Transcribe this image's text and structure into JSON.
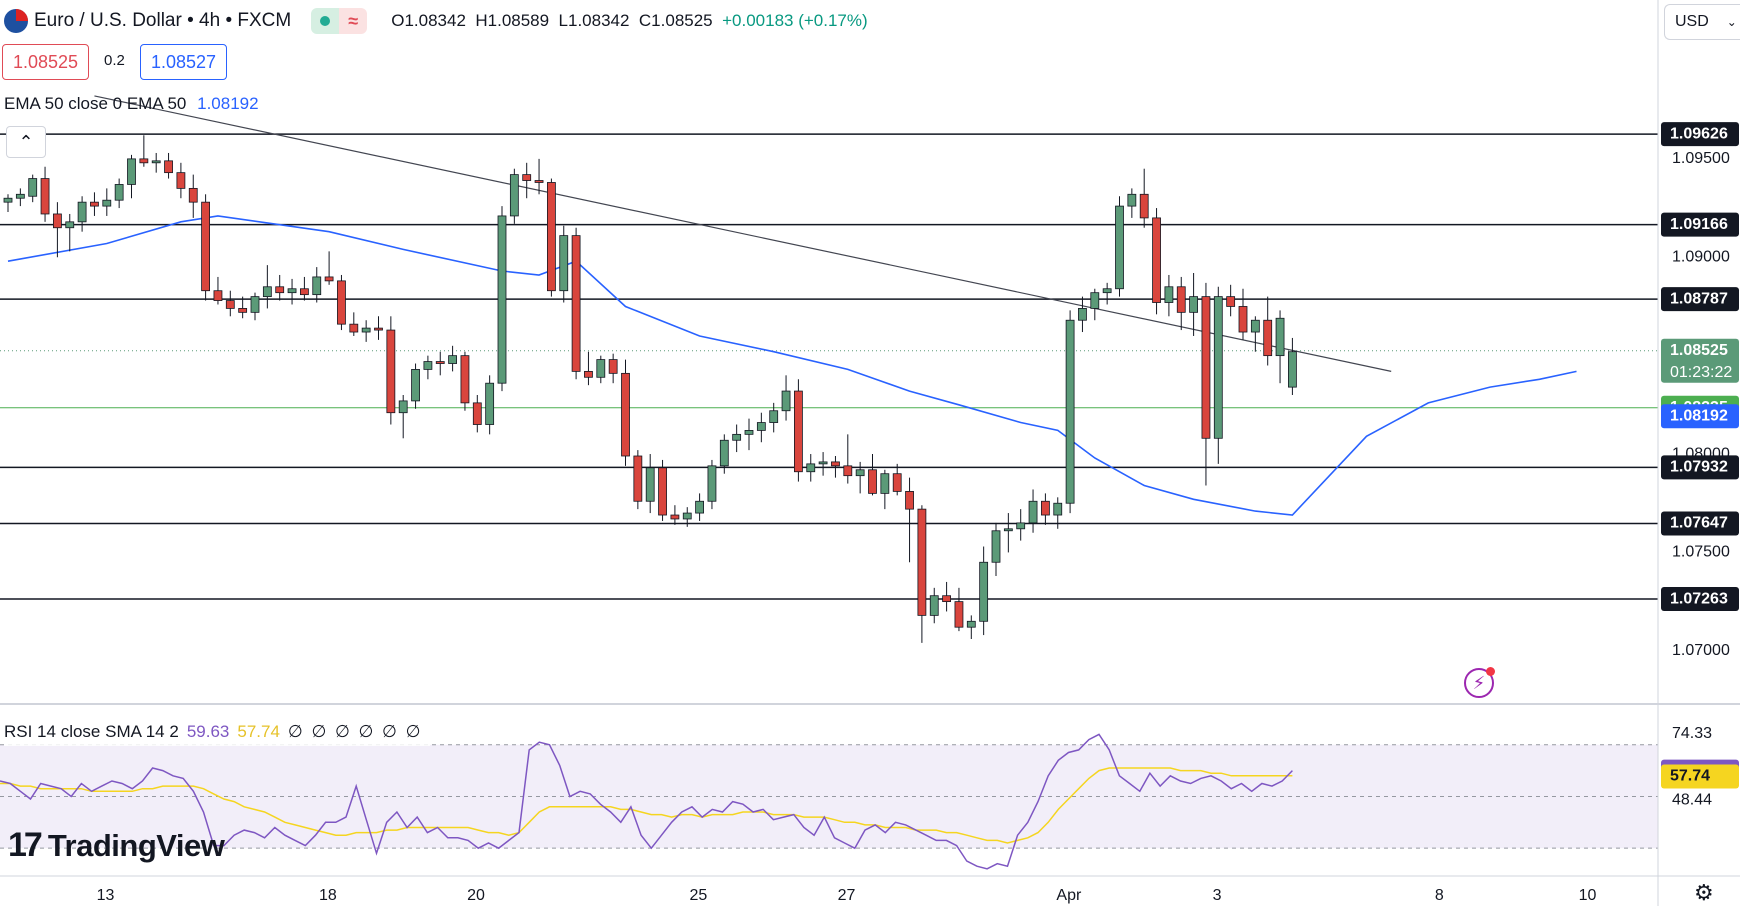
{
  "header": {
    "title": "Euro / U.S. Dollar • 4h • FXCM",
    "wave_symbol": "≈",
    "ohlc": {
      "o": "O1.08342",
      "h": "H1.08589",
      "l": "L1.08342",
      "c": "C1.08525",
      "change": "+0.00183 (+0.17%)"
    }
  },
  "trade": {
    "sell": "1.08525",
    "spread": "0.2",
    "buy": "1.08527"
  },
  "ema_legend": {
    "label": "EMA 50 close 0 EMA 50",
    "value": "1.08192"
  },
  "collapse_glyph": "⌃",
  "currency": {
    "label": "USD",
    "chevron": "⌄"
  },
  "rsi_legend": {
    "label": "RSI 14 close SMA 14 2",
    "rsi": "59.63",
    "sma": "57.74",
    "zeros": "∅ ∅ ∅ ∅ ∅ ∅"
  },
  "logo": {
    "mark": "17",
    "text": "TradingView"
  },
  "flash_glyph": "⚡",
  "gear_glyph": "⚙",
  "colors": {
    "up": "#5b9a78",
    "down": "#d9453d",
    "ema": "#2962ff",
    "rsi": "#7e57c2",
    "rsi_sma": "#f5d520",
    "green_line": "#4caf50",
    "trend": "#434651"
  },
  "chart_data": {
    "type": "candlestick",
    "price_axis": {
      "ylim": [
        1.0675,
        1.0985
      ],
      "ticks": [
        "1.09500",
        "1.09000",
        "1.08000",
        "1.07500",
        "1.07000"
      ]
    },
    "time_axis": {
      "ticks": [
        {
          "label": "13",
          "i": 7
        },
        {
          "label": "18",
          "i": 22
        },
        {
          "label": "20",
          "i": 32
        },
        {
          "label": "25",
          "i": 47
        },
        {
          "label": "27",
          "i": 57
        },
        {
          "label": "Apr",
          "i": 72
        },
        {
          "label": "3",
          "i": 82
        },
        {
          "label": "8",
          "i": 97
        },
        {
          "label": "10",
          "i": 107
        }
      ]
    },
    "horizontal_levels": [
      {
        "value": 1.09626,
        "label": "1.09626"
      },
      {
        "value": 1.09166,
        "label": "1.09166"
      },
      {
        "value": 1.08787,
        "label": "1.08787"
      },
      {
        "value": 1.07932,
        "label": "1.07932"
      },
      {
        "value": 1.07647,
        "label": "1.07647"
      },
      {
        "value": 1.07263,
        "label": "1.07263"
      }
    ],
    "support_line": {
      "value": 1.08235,
      "label": "1.08235"
    },
    "current_price": {
      "value": 1.08525,
      "label": "1.08525",
      "countdown": "01:23:22"
    },
    "ema_current": {
      "value": 1.08192,
      "label": "1.08192"
    },
    "trendline": [
      {
        "i": 7,
        "price": 1.0982
      },
      {
        "i": 112,
        "price": 1.0842
      }
    ],
    "candles": [
      [
        1.0928,
        1.0932,
        1.0923,
        1.093
      ],
      [
        1.093,
        1.0935,
        1.0926,
        1.0932
      ],
      [
        1.0931,
        1.0942,
        1.0928,
        1.094
      ],
      [
        1.094,
        1.0946,
        1.0918,
        1.0922
      ],
      [
        1.0922,
        1.0928,
        1.09,
        1.0915
      ],
      [
        1.0915,
        1.0922,
        1.0903,
        1.0918
      ],
      [
        1.0918,
        1.0931,
        1.0913,
        1.0928
      ],
      [
        1.0928,
        1.0933,
        1.0921,
        1.0926
      ],
      [
        1.0926,
        1.0935,
        1.0921,
        1.0929
      ],
      [
        1.0929,
        1.094,
        1.0925,
        1.0937
      ],
      [
        1.0937,
        1.0952,
        1.093,
        1.095
      ],
      [
        1.095,
        1.0962,
        1.0946,
        1.0948
      ],
      [
        1.0948,
        1.0953,
        1.0943,
        1.0949
      ],
      [
        1.0949,
        1.0953,
        1.094,
        1.0943
      ],
      [
        1.0943,
        1.0948,
        1.093,
        1.0935
      ],
      [
        1.0935,
        1.0942,
        1.092,
        1.0928
      ],
      [
        1.0928,
        1.0932,
        1.0878,
        1.0883
      ],
      [
        1.0883,
        1.089,
        1.0876,
        1.0878
      ],
      [
        1.0878,
        1.0883,
        1.087,
        1.0874
      ],
      [
        1.0874,
        1.088,
        1.0869,
        1.0872
      ],
      [
        1.0872,
        1.0882,
        1.0868,
        1.088
      ],
      [
        1.088,
        1.0896,
        1.0874,
        1.0885
      ],
      [
        1.0885,
        1.0891,
        1.0878,
        1.0882
      ],
      [
        1.0882,
        1.0889,
        1.0876,
        1.0884
      ],
      [
        1.0884,
        1.089,
        1.0878,
        1.0881
      ],
      [
        1.0881,
        1.0895,
        1.0877,
        1.089
      ],
      [
        1.089,
        1.0903,
        1.0886,
        1.0888
      ],
      [
        1.0888,
        1.0891,
        1.0863,
        1.0866
      ],
      [
        1.0866,
        1.0872,
        1.086,
        1.0862
      ],
      [
        1.0862,
        1.0868,
        1.0857,
        1.0864
      ],
      [
        1.0864,
        1.087,
        1.0858,
        1.0863
      ],
      [
        1.0863,
        1.087,
        1.0815,
        1.0821
      ],
      [
        1.0821,
        1.083,
        1.0808,
        1.0827
      ],
      [
        1.0827,
        1.0846,
        1.0823,
        1.0843
      ],
      [
        1.0843,
        1.085,
        1.0838,
        1.0847
      ],
      [
        1.0847,
        1.0852,
        1.084,
        1.0846
      ],
      [
        1.0846,
        1.0855,
        1.0842,
        1.085
      ],
      [
        1.085,
        1.0852,
        1.0822,
        1.0826
      ],
      [
        1.0826,
        1.083,
        1.0811,
        1.0815
      ],
      [
        1.0815,
        1.084,
        1.081,
        1.0836
      ],
      [
        1.0836,
        1.0926,
        1.0832,
        1.0921
      ],
      [
        1.0921,
        1.0945,
        1.0917,
        1.0942
      ],
      [
        1.0942,
        1.0948,
        1.093,
        1.0939
      ],
      [
        1.0939,
        1.095,
        1.0932,
        1.0938
      ],
      [
        1.0938,
        1.094,
        1.088,
        1.0883
      ],
      [
        1.0883,
        1.0916,
        1.0877,
        1.0911
      ],
      [
        1.0911,
        1.0915,
        1.0838,
        1.0842
      ],
      [
        1.0842,
        1.0852,
        1.0835,
        1.0839
      ],
      [
        1.0839,
        1.085,
        1.0836,
        1.0848
      ],
      [
        1.0848,
        1.0851,
        1.0836,
        1.0841
      ],
      [
        1.0841,
        1.0848,
        1.0794,
        1.0799
      ],
      [
        1.0799,
        1.0802,
        1.0772,
        1.0776
      ],
      [
        1.0776,
        1.08,
        1.077,
        1.0793
      ],
      [
        1.0793,
        1.0797,
        1.0766,
        1.0769
      ],
      [
        1.0769,
        1.0774,
        1.0764,
        1.0767
      ],
      [
        1.0767,
        1.0773,
        1.0763,
        1.077
      ],
      [
        1.077,
        1.078,
        1.0766,
        1.0776
      ],
      [
        1.0776,
        1.0797,
        1.0772,
        1.0794
      ],
      [
        1.0794,
        1.081,
        1.079,
        1.0807
      ],
      [
        1.0807,
        1.0815,
        1.0801,
        1.081
      ],
      [
        1.081,
        1.0818,
        1.0802,
        1.0812
      ],
      [
        1.0812,
        1.0821,
        1.0806,
        1.0816
      ],
      [
        1.0816,
        1.0826,
        1.0811,
        1.0822
      ],
      [
        1.0822,
        1.084,
        1.0817,
        1.0832
      ],
      [
        1.0832,
        1.0838,
        1.0786,
        1.0791
      ],
      [
        1.0791,
        1.08,
        1.0786,
        1.0795
      ],
      [
        1.0795,
        1.0801,
        1.0789,
        1.0796
      ],
      [
        1.0796,
        1.0799,
        1.0788,
        1.0794
      ],
      [
        1.0794,
        1.081,
        1.0785,
        1.0789
      ],
      [
        1.0789,
        1.0796,
        1.078,
        1.0792
      ],
      [
        1.0792,
        1.08,
        1.0779,
        1.078
      ],
      [
        1.078,
        1.0792,
        1.0772,
        1.079
      ],
      [
        1.079,
        1.0795,
        1.0779,
        1.0781
      ],
      [
        1.0781,
        1.0788,
        1.0745,
        1.0772
      ],
      [
        1.0772,
        1.0774,
        1.0704,
        1.0718
      ],
      [
        1.0718,
        1.0732,
        1.0714,
        1.0728
      ],
      [
        1.0728,
        1.0735,
        1.072,
        1.0725
      ],
      [
        1.0725,
        1.0732,
        1.071,
        1.0712
      ],
      [
        1.0712,
        1.0718,
        1.0706,
        1.0715
      ],
      [
        1.0715,
        1.0753,
        1.0708,
        1.0745
      ],
      [
        1.0745,
        1.0765,
        1.0738,
        1.0761
      ],
      [
        1.0761,
        1.077,
        1.075,
        1.0762
      ],
      [
        1.0762,
        1.0772,
        1.0756,
        1.0765
      ],
      [
        1.0765,
        1.0782,
        1.076,
        1.0776
      ],
      [
        1.0776,
        1.078,
        1.0764,
        1.0769
      ],
      [
        1.0769,
        1.0778,
        1.0762,
        1.0775
      ],
      [
        1.0775,
        1.0873,
        1.077,
        1.0868
      ],
      [
        1.0868,
        1.088,
        1.0862,
        1.0874
      ],
      [
        1.0874,
        1.0884,
        1.0868,
        1.0882
      ],
      [
        1.0882,
        1.0887,
        1.0876,
        1.0884
      ],
      [
        1.0884,
        1.0931,
        1.088,
        1.0926
      ],
      [
        1.0926,
        1.0935,
        1.092,
        1.0932
      ],
      [
        1.0932,
        1.0945,
        1.0915,
        1.092
      ],
      [
        1.092,
        1.0925,
        1.0871,
        1.0877
      ],
      [
        1.0877,
        1.0891,
        1.087,
        1.0885
      ],
      [
        1.0885,
        1.089,
        1.0863,
        1.0872
      ],
      [
        1.0872,
        1.0892,
        1.086,
        1.088
      ],
      [
        1.088,
        1.0887,
        1.0784,
        1.0808
      ],
      [
        1.0808,
        1.0885,
        1.0795,
        1.088
      ],
      [
        1.088,
        1.0886,
        1.087,
        1.0875
      ],
      [
        1.0875,
        1.0884,
        1.0858,
        1.0862
      ],
      [
        1.0862,
        1.087,
        1.0852,
        1.0868
      ],
      [
        1.0868,
        1.088,
        1.0845,
        1.085
      ],
      [
        1.085,
        1.0873,
        1.0836,
        1.0869
      ],
      [
        1.0834,
        1.0859,
        1.083,
        1.0852
      ]
    ],
    "ema50": [
      [
        0,
        1.0898
      ],
      [
        8,
        1.0907
      ],
      [
        14,
        1.0918
      ],
      [
        17,
        1.0921
      ],
      [
        26,
        1.0913
      ],
      [
        32,
        1.0904
      ],
      [
        40,
        1.0893
      ],
      [
        43,
        1.0891
      ],
      [
        46,
        1.0898
      ],
      [
        50,
        1.0875
      ],
      [
        56,
        1.086
      ],
      [
        62,
        1.0852
      ],
      [
        68,
        1.0843
      ],
      [
        73,
        1.0832
      ],
      [
        77,
        1.0825
      ],
      [
        82,
        1.0816
      ],
      [
        85,
        1.0812
      ],
      [
        88,
        1.0798
      ],
      [
        92,
        1.0784
      ],
      [
        96,
        1.0777
      ],
      [
        101,
        1.0771
      ],
      [
        104,
        1.0769
      ],
      [
        110,
        1.0809
      ],
      [
        115,
        1.0826
      ],
      [
        120,
        1.0834
      ],
      [
        124,
        1.0838
      ],
      [
        127,
        1.0842
      ]
    ],
    "rsi": {
      "ylim": [
        20,
        85
      ],
      "ticks": [
        "74.33",
        "48.44"
      ],
      "bands": [
        70,
        50,
        30
      ],
      "current_rsi": {
        "value": 59.63,
        "label": "59.63"
      },
      "current_sma": {
        "value": 57.74,
        "label": "57.74"
      },
      "rsi_values": [
        56,
        55,
        52,
        49,
        55,
        54,
        53,
        50,
        55,
        52,
        54,
        56,
        55,
        53,
        56,
        61,
        60,
        58,
        57,
        52,
        44,
        31,
        31,
        35,
        37,
        36,
        34,
        38,
        35,
        33,
        31,
        35,
        40,
        40,
        42,
        54,
        41,
        28,
        40,
        44,
        38,
        42,
        36,
        38,
        34,
        34,
        33,
        30,
        32,
        30,
        33,
        36,
        68,
        71,
        70,
        62,
        50,
        52,
        51,
        47,
        44,
        40,
        46,
        35,
        30,
        35,
        40,
        44,
        46,
        42,
        45,
        44,
        48,
        47,
        44,
        45,
        41,
        42,
        43,
        38,
        35,
        42,
        34,
        32,
        30,
        37,
        39,
        36,
        40,
        39,
        37,
        35,
        33,
        33,
        31,
        25,
        23,
        22,
        24,
        23,
        35,
        40,
        48,
        58,
        64,
        67,
        68,
        72,
        74,
        68,
        58,
        55,
        52,
        59,
        54,
        58,
        56,
        55,
        57,
        58,
        56,
        53,
        55,
        52,
        55,
        54,
        56,
        60
      ],
      "sma_values": [
        55,
        55,
        54,
        54,
        53,
        53,
        53,
        53,
        53,
        52,
        52,
        52,
        52,
        52,
        53,
        53,
        54,
        54,
        54,
        54,
        53,
        51,
        49,
        48,
        46,
        45,
        44,
        42,
        40,
        39,
        38,
        37,
        36,
        35,
        35,
        36,
        36,
        36,
        37,
        37,
        38,
        38,
        38,
        38,
        38,
        38,
        38,
        37,
        36,
        36,
        35,
        36,
        40,
        44,
        46,
        46,
        46,
        46,
        46,
        46,
        46,
        45,
        45,
        44,
        43,
        43,
        42,
        43,
        43,
        42,
        43,
        43,
        43,
        44,
        44,
        44,
        43,
        43,
        43,
        42,
        42,
        42,
        41,
        40,
        40,
        39,
        39,
        38,
        38,
        38,
        37,
        37,
        37,
        36,
        36,
        35,
        34,
        33,
        33,
        32,
        33,
        34,
        36,
        40,
        45,
        49,
        53,
        57,
        60,
        61,
        61,
        61,
        61,
        61,
        61,
        61,
        60,
        60,
        60,
        59,
        59,
        58,
        58,
        58,
        58,
        58,
        58,
        58
      ]
    }
  }
}
